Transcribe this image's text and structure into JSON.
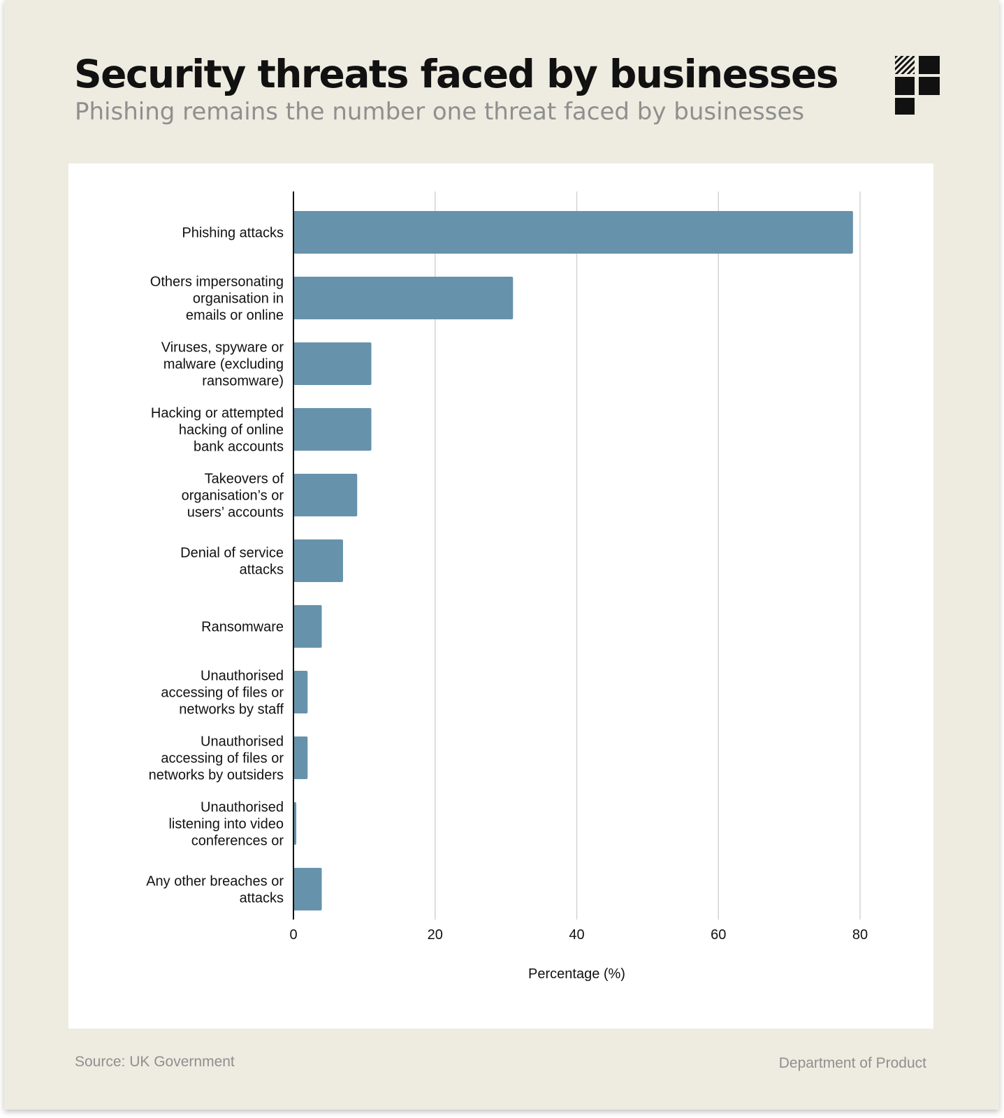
{
  "header": {
    "title": "Security threats faced by businesses",
    "subtitle": "Phishing remains the number one threat faced by businesses"
  },
  "footer": {
    "source": "Source: UK Government",
    "brand": "Department of Product"
  },
  "logo": {
    "icon": "grid-blocks-logo-icon"
  },
  "chart_data": {
    "type": "bar",
    "orientation": "horizontal",
    "categories": [
      [
        "Phishing attacks"
      ],
      [
        "Others impersonating",
        "organisation in",
        "emails or online"
      ],
      [
        "Viruses, spyware or",
        "malware (excluding",
        "ransomware)"
      ],
      [
        "Hacking or attempted",
        "hacking of online",
        "bank accounts"
      ],
      [
        "Takeovers of",
        "organisation’s or",
        "users’ accounts"
      ],
      [
        "Denial of service",
        "attacks"
      ],
      [
        "Ransomware"
      ],
      [
        "Unauthorised",
        "accessing of files or",
        "networks by staff"
      ],
      [
        "Unauthorised",
        "accessing of files or",
        "networks by outsiders"
      ],
      [
        "Unauthorised",
        "listening into video",
        "conferences or"
      ],
      [
        "Any other breaches or",
        "attacks"
      ]
    ],
    "values": [
      79,
      31,
      11,
      11,
      9,
      7,
      4,
      2,
      2,
      0.4,
      4
    ],
    "xlabel": "Percentage (%)",
    "xlim": [
      0,
      80
    ],
    "xticks": [
      "0",
      "20",
      "40",
      "60",
      "80"
    ],
    "grid": true,
    "bar_color": "#6792ac",
    "grid_color": "#d3d3d3",
    "axis_color": "#111111"
  }
}
